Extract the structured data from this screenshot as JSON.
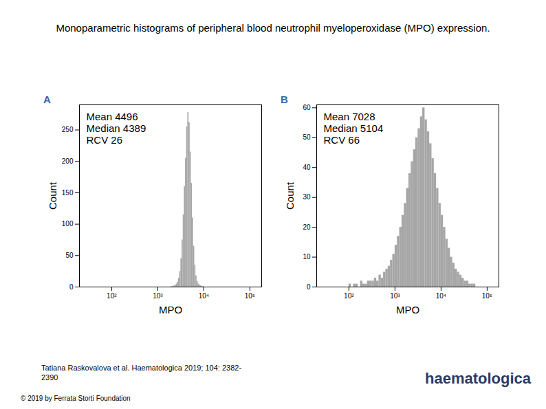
{
  "title": "Monoparametric histograms of peripheral blood neutrophil myeloperoxidase (MPO) expression.",
  "caption": "Tatiana Raskovalova et al. Haematologica 2019; 104: 2382-2390",
  "copyright": "© 2019 by Ferrata Storti Foundation",
  "logo": "haematologica",
  "chart_data": [
    {
      "type": "histogram",
      "panel": "A",
      "x_label": "MPO",
      "y_label": "Count",
      "color": "#a6a6a6",
      "log": "x",
      "grid": false,
      "annotations": [
        "Mean 4496",
        "Median 4389",
        "RCV 26"
      ],
      "bins": [
        1995,
        2113,
        2239,
        2371,
        2512,
        2661,
        2818,
        2985,
        3162,
        3350,
        3548,
        3758,
        3981,
        4217,
        4467,
        4732,
        5012,
        5309,
        5623,
        5957,
        6310,
        6683,
        7079,
        7499,
        7943,
        8414,
        8913,
        9441,
        10000
      ],
      "values": [
        1,
        1,
        2,
        3,
        5,
        8,
        14,
        25,
        45,
        75,
        115,
        160,
        205,
        255,
        278,
        262,
        215,
        165,
        110,
        65,
        35,
        18,
        9,
        5,
        3,
        2,
        1,
        1
      ],
      "xlim": [
        20,
        180000
      ],
      "xticks": [
        {
          "value": 100,
          "label": "10²"
        },
        {
          "value": 1000,
          "label": "10³"
        },
        {
          "value": 10000,
          "label": "10⁴"
        },
        {
          "value": 100000,
          "label": "10⁵"
        }
      ],
      "ylim": [
        0,
        290
      ],
      "yticks": [
        0,
        50,
        100,
        150,
        200,
        250
      ]
    },
    {
      "type": "histogram",
      "panel": "B",
      "x_label": "MPO",
      "y_label": "Count",
      "color": "#a6a6a6",
      "log": "x",
      "grid": false,
      "annotations": [
        "Mean 7028",
        "Median 5104",
        "RCV 66"
      ],
      "bins": [
        100,
        112,
        126,
        141,
        158,
        178,
        200,
        224,
        251,
        282,
        316,
        355,
        398,
        447,
        501,
        562,
        631,
        708,
        794,
        891,
        1000,
        1122,
        1259,
        1413,
        1585,
        1778,
        1995,
        2239,
        2512,
        2818,
        3162,
        3548,
        3981,
        4467,
        5012,
        5623,
        6310,
        7079,
        7943,
        8913,
        10000,
        11220,
        12590,
        14130,
        15850,
        17780,
        19950,
        22390,
        25120,
        28180,
        31620,
        35480,
        39810,
        44670,
        50120,
        56230,
        63100
      ],
      "values": [
        1,
        0,
        1,
        1,
        0,
        2,
        1,
        1,
        2,
        2,
        2,
        3,
        2,
        4,
        3,
        5,
        6,
        7,
        9,
        11,
        14,
        17,
        20,
        24,
        28,
        33,
        38,
        42,
        46,
        50,
        53,
        57,
        60,
        56,
        52,
        48,
        43,
        38,
        33,
        28,
        24,
        20,
        16,
        13,
        10,
        8,
        6,
        5,
        4,
        3,
        2,
        2,
        1,
        1,
        1,
        0
      ],
      "xlim": [
        20,
        180000
      ],
      "xticks": [
        {
          "value": 100,
          "label": "10²"
        },
        {
          "value": 1000,
          "label": "10³"
        },
        {
          "value": 10000,
          "label": "10⁴"
        },
        {
          "value": 100000,
          "label": "10⁵"
        }
      ],
      "ylim": [
        0,
        61
      ],
      "yticks": [
        0,
        10,
        20,
        30,
        40,
        50,
        60
      ]
    }
  ]
}
